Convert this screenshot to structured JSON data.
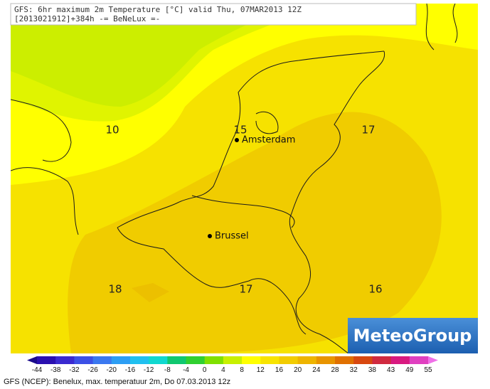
{
  "header": {
    "line1": "GFS: 6hr maximum 2m Temperature [°C] valid Thu, 07MAR2013 12Z",
    "line2": "[2013021912]+384h -= BeNeLux =-"
  },
  "map": {
    "contour_labels": [
      10,
      15,
      17,
      18,
      17,
      16
    ],
    "cities": [
      "Amsterdam",
      "Brussel"
    ]
  },
  "logo": "MeteoGroup",
  "colorbar": {
    "ticks": [
      -44,
      -38,
      -32,
      -26,
      -20,
      -16,
      -12,
      -8,
      -4,
      0,
      4,
      8,
      12,
      16,
      20,
      24,
      28,
      32,
      38,
      43,
      49,
      55
    ],
    "colors": [
      "#1a0a8c",
      "#2a10b0",
      "#3a2ad0",
      "#3c50e6",
      "#3a78f0",
      "#2c9ef4",
      "#20c0f0",
      "#10d8d0",
      "#10c870",
      "#30d030",
      "#80e000",
      "#c8f000",
      "#ffff00",
      "#f8e400",
      "#f2cc00",
      "#eeb400",
      "#e89400",
      "#e07000",
      "#d84810",
      "#d02a40",
      "#d81a80",
      "#e040c0",
      "#f070e8"
    ]
  },
  "footer": "GFS (NCEP): Benelux, max. temperatuur 2m, Do 07.03.2013 12z"
}
